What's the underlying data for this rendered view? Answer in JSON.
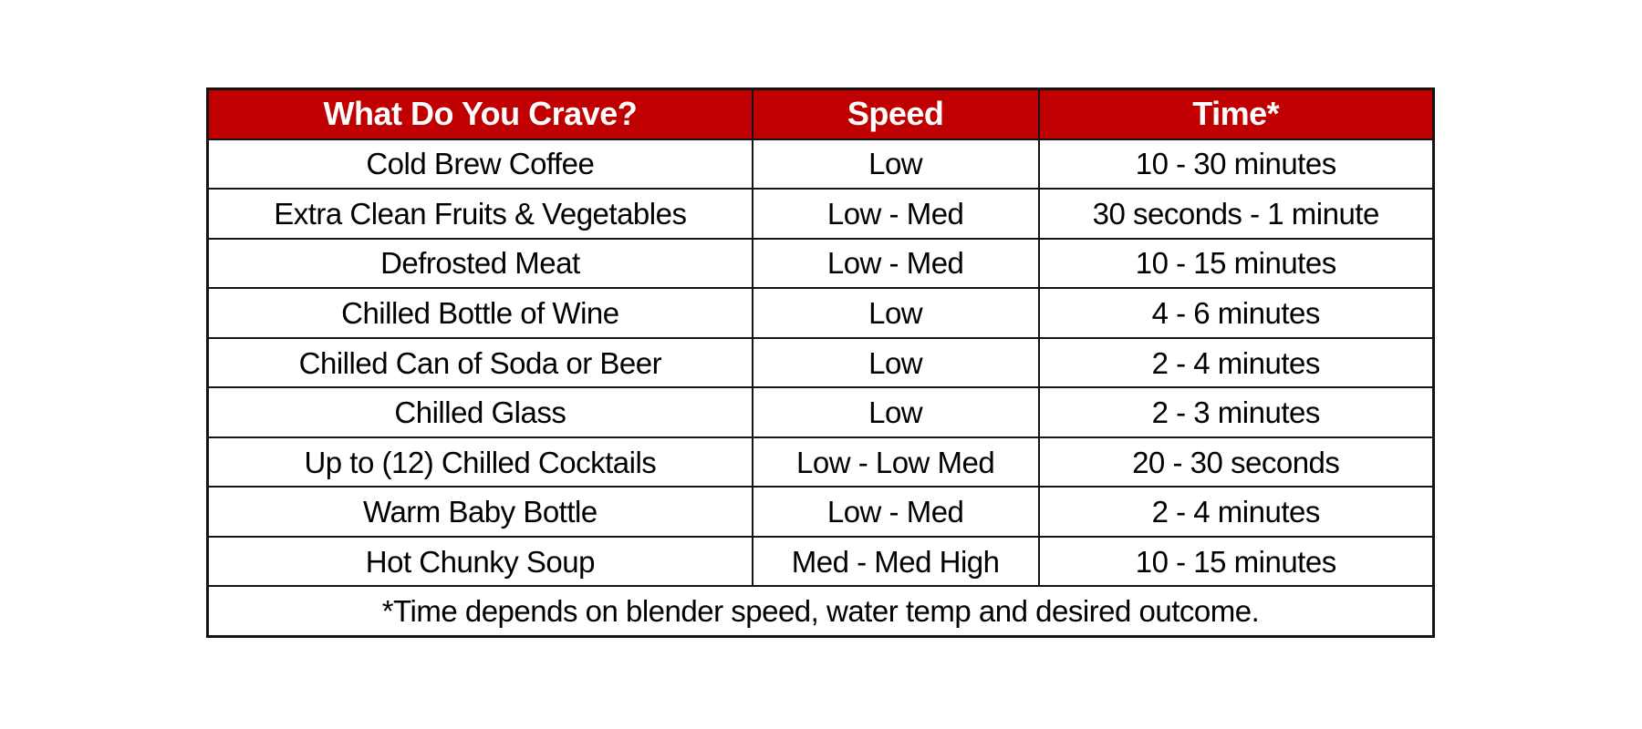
{
  "chart_data": {
    "type": "table",
    "columns": [
      "What Do You Crave?",
      "Speed",
      "Time*"
    ],
    "rows": [
      {
        "item": "Cold Brew Coffee",
        "speed": "Low",
        "time": "10 - 30 minutes"
      },
      {
        "item": "Extra Clean Fruits & Vegetables",
        "speed": "Low - Med",
        "time": "30 seconds - 1 minute"
      },
      {
        "item": "Defrosted Meat",
        "speed": "Low - Med",
        "time": "10 - 15 minutes"
      },
      {
        "item": "Chilled Bottle of Wine",
        "speed": "Low",
        "time": "4 - 6 minutes"
      },
      {
        "item": "Chilled Can of Soda or Beer",
        "speed": "Low",
        "time": "2 - 4 minutes"
      },
      {
        "item": "Chilled Glass",
        "speed": "Low",
        "time": "2 - 3 minutes"
      },
      {
        "item": "Up to (12) Chilled Cocktails",
        "speed": "Low - Low Med",
        "time": "20 - 30 seconds"
      },
      {
        "item": "Warm Baby Bottle",
        "speed": "Low - Med",
        "time": "2 - 4 minutes"
      },
      {
        "item": "Hot Chunky Soup",
        "speed": "Med - Med High",
        "time": "10 - 15 minutes"
      }
    ],
    "footnote": "*Time depends on blender speed, water temp and desired outcome.",
    "colors": {
      "header_bg": "#C00000",
      "header_text": "#FFFFFF",
      "border": "#141414",
      "body_text": "#000000"
    }
  }
}
